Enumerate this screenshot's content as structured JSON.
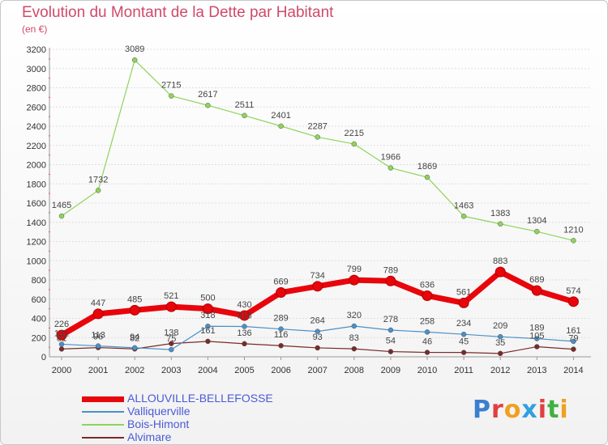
{
  "header": {
    "title": "Evolution du Montant de la Dette par Habitant",
    "unit": "(en €)"
  },
  "logo": {
    "text": "Proxiti"
  },
  "colors": {
    "ALLOUVILLE-BELLEFOSSE": "#e8050b",
    "Valliquerville": "#4a90c8",
    "Bois-Himont": "#8ed45a",
    "Alvimare": "#7a2a2a"
  },
  "chart_data": {
    "type": "line",
    "title": "Evolution du Montant de la Dette par Habitant",
    "ylabel": "(en €)",
    "xlabel": "",
    "x": [
      "2000",
      "2001",
      "2002",
      "2003",
      "2004",
      "2005",
      "2006",
      "2007",
      "2008",
      "2009",
      "2010",
      "2011",
      "2012",
      "2013",
      "2014"
    ],
    "ylim": [
      0,
      3200
    ],
    "yticks": [
      0,
      200,
      400,
      600,
      800,
      1000,
      1200,
      1400,
      1600,
      1800,
      2000,
      2200,
      2400,
      2600,
      2800,
      3000,
      3200
    ],
    "grid": true,
    "legend": "bottom-left",
    "series": [
      {
        "name": "ALLOUVILLE-BELLEFOSSE",
        "values": [
          226,
          447,
          485,
          521,
          500,
          430,
          669,
          734,
          799,
          789,
          636,
          561,
          883,
          689,
          574
        ]
      },
      {
        "name": "Valliquerville",
        "values": [
          131,
          113,
          94,
          75,
          318,
          316,
          289,
          264,
          320,
          278,
          258,
          234,
          209,
          189,
          161
        ]
      },
      {
        "name": "Bois-Himont",
        "values": [
          1465,
          1732,
          3089,
          2715,
          2617,
          2511,
          2401,
          2287,
          2215,
          1966,
          1869,
          1463,
          1383,
          1304,
          1210
        ]
      },
      {
        "name": "Alvimare",
        "values": [
          81,
          96,
          82,
          138,
          161,
          136,
          116,
          93,
          83,
          54,
          46,
          45,
          35,
          105,
          79
        ]
      }
    ]
  }
}
